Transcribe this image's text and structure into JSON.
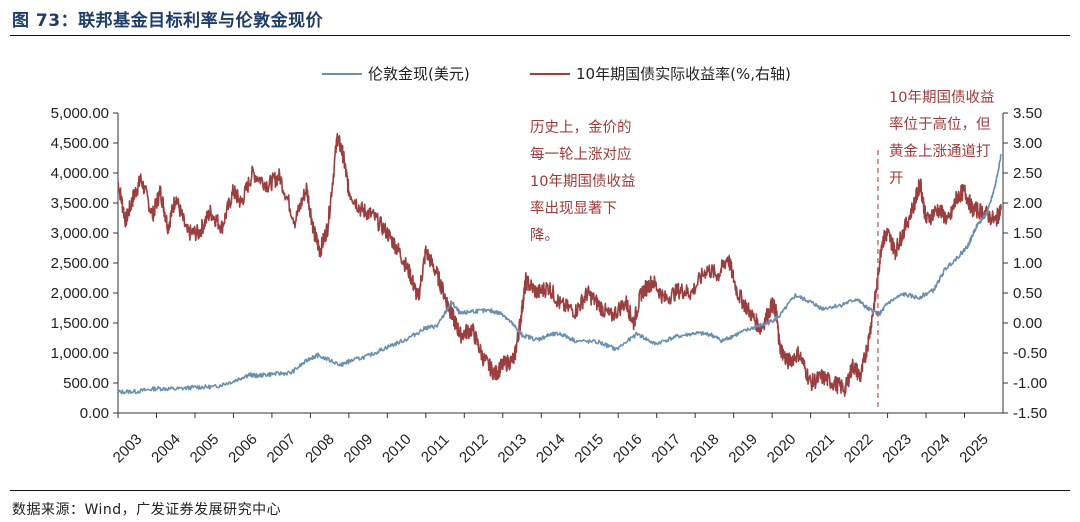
{
  "figure": {
    "title": "图 73：联邦基金目标利率与伦敦金现价",
    "source": "数据来源：Wind，广发证券发展研究中心"
  },
  "colors": {
    "gold": "#6b8fae",
    "yield": "#9a3f3f",
    "accent_title": "#1f3d6b"
  },
  "chart_data": {
    "type": "line",
    "title": "",
    "x_ticks": [
      "2003",
      "2004",
      "2005",
      "2006",
      "2007",
      "2008",
      "2009",
      "2010",
      "2011",
      "2012",
      "2013",
      "2014",
      "2015",
      "2016",
      "2017",
      "2018",
      "2019",
      "2020",
      "2021",
      "2022",
      "2023",
      "2024",
      "2025"
    ],
    "xlim": [
      2003.0,
      2026.0
    ],
    "left_axis": {
      "ylim": [
        0,
        5000
      ],
      "ticks": [
        "0.00",
        "500.00",
        "1,000.00",
        "1,500.00",
        "2,000.00",
        "2,500.00",
        "3,000.00",
        "3,500.00",
        "4,000.00",
        "4,500.00",
        "5,000.00"
      ]
    },
    "right_axis": {
      "ylim": [
        -1.5,
        3.5
      ],
      "ticks": [
        "-1.50",
        "-1.00",
        "-0.50",
        "0.00",
        "0.50",
        "1.00",
        "1.50",
        "2.00",
        "2.50",
        "3.00",
        "3.50"
      ]
    },
    "legend_position": "top-center",
    "series": [
      {
        "name": "伦敦金现(美元)",
        "axis": "left",
        "x": [
          2003.0,
          2003.5,
          2004.0,
          2004.5,
          2005.0,
          2005.5,
          2006.0,
          2006.4,
          2006.6,
          2007.0,
          2007.5,
          2008.0,
          2008.2,
          2008.8,
          2009.0,
          2009.5,
          2010.0,
          2010.5,
          2011.0,
          2011.3,
          2011.67,
          2011.9,
          2012.2,
          2012.7,
          2013.0,
          2013.3,
          2013.5,
          2013.9,
          2014.2,
          2014.5,
          2014.9,
          2015.5,
          2015.95,
          2016.5,
          2016.95,
          2017.5,
          2018.0,
          2018.4,
          2018.7,
          2019.0,
          2019.5,
          2019.9,
          2020.2,
          2020.6,
          2021.0,
          2021.3,
          2021.8,
          2022.2,
          2022.5,
          2022.8,
          2023.0,
          2023.4,
          2023.8,
          2024.2,
          2024.5,
          2024.9,
          2025.1,
          2025.3,
          2025.6,
          2025.8,
          2025.95
        ],
        "values": [
          350,
          360,
          410,
          400,
          430,
          435,
          530,
          640,
          620,
          650,
          670,
          920,
          960,
          800,
          860,
          950,
          1100,
          1230,
          1420,
          1450,
          1850,
          1650,
          1700,
          1700,
          1650,
          1450,
          1300,
          1220,
          1300,
          1320,
          1200,
          1180,
          1060,
          1320,
          1150,
          1270,
          1330,
          1310,
          1200,
          1290,
          1420,
          1500,
          1620,
          1960,
          1850,
          1740,
          1800,
          1900,
          1730,
          1650,
          1830,
          1980,
          1920,
          2050,
          2400,
          2650,
          2800,
          3100,
          3350,
          3800,
          4300
        ]
      },
      {
        "name": "10年期国债实际收益率(%,右轴)",
        "axis": "right",
        "x": [
          2003.0,
          2003.2,
          2003.4,
          2003.6,
          2003.9,
          2004.1,
          2004.3,
          2004.5,
          2004.8,
          2005.1,
          2005.4,
          2005.7,
          2006.0,
          2006.2,
          2006.5,
          2006.9,
          2007.2,
          2007.6,
          2007.9,
          2008.1,
          2008.25,
          2008.45,
          2008.7,
          2008.85,
          2009.0,
          2009.3,
          2009.6,
          2010.0,
          2010.3,
          2010.6,
          2010.8,
          2011.0,
          2011.3,
          2011.55,
          2011.7,
          2011.9,
          2012.2,
          2012.5,
          2012.8,
          2013.0,
          2013.3,
          2013.45,
          2013.6,
          2013.9,
          2014.2,
          2014.5,
          2014.9,
          2015.2,
          2015.5,
          2015.8,
          2016.2,
          2016.4,
          2016.6,
          2016.9,
          2017.2,
          2017.6,
          2017.9,
          2018.3,
          2018.6,
          2018.85,
          2019.1,
          2019.4,
          2019.7,
          2020.0,
          2020.1,
          2020.2,
          2020.4,
          2020.7,
          2021.0,
          2021.3,
          2021.6,
          2021.9,
          2022.1,
          2022.3,
          2022.5,
          2022.7,
          2022.85,
          2023.0,
          2023.2,
          2023.4,
          2023.7,
          2023.85,
          2024.0,
          2024.3,
          2024.6,
          2024.8,
          2025.0,
          2025.2,
          2025.5,
          2025.8,
          2025.95
        ],
        "values": [
          2.35,
          1.7,
          2.1,
          2.4,
          1.8,
          2.2,
          1.6,
          2.1,
          1.5,
          1.5,
          1.85,
          1.6,
          2.2,
          2.0,
          2.5,
          2.3,
          2.45,
          1.7,
          2.25,
          1.5,
          1.2,
          1.6,
          3.1,
          2.8,
          2.2,
          1.9,
          1.8,
          1.5,
          1.2,
          0.8,
          0.4,
          1.2,
          0.8,
          0.35,
          0.1,
          -0.2,
          -0.1,
          -0.6,
          -0.85,
          -0.7,
          -0.6,
          0.0,
          0.7,
          0.5,
          0.6,
          0.3,
          0.2,
          0.5,
          0.3,
          0.1,
          0.35,
          0.0,
          0.5,
          0.7,
          0.4,
          0.55,
          0.5,
          0.9,
          0.8,
          1.1,
          0.5,
          0.2,
          -0.1,
          0.3,
          0.2,
          -0.4,
          -0.65,
          -0.5,
          -1.0,
          -0.9,
          -1.0,
          -1.1,
          -0.7,
          -0.9,
          -0.3,
          0.5,
          1.35,
          1.5,
          1.2,
          1.5,
          2.0,
          2.35,
          1.7,
          1.9,
          1.7,
          2.1,
          2.2,
          1.9,
          1.85,
          1.7,
          1.9
        ]
      }
    ],
    "annotations": [
      {
        "lines": [
          "历史上，金价的",
          "每一轮上涨对应",
          "10年期国债收益",
          "率出现显著下",
          "降。"
        ]
      },
      {
        "lines": [
          "10年期国债收益",
          "率位于高位，但",
          "黄金上涨通道打",
          "开"
        ]
      }
    ],
    "reference_line": {
      "x": 2022.75,
      "style": "dashed"
    }
  }
}
